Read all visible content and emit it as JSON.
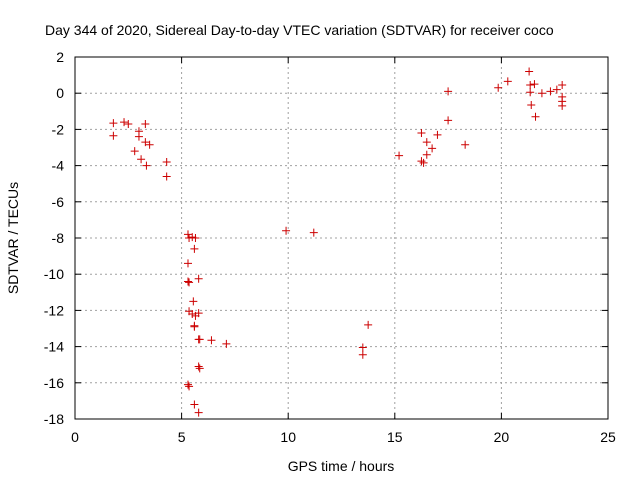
{
  "chart_data": {
    "type": "scatter",
    "title": "Day 344 of 2020, Sidereal Day-to-day VTEC variation (SDTVAR) for receiver coco",
    "xlabel": "GPS time / hours",
    "ylabel": "SDTVAR / TECUs",
    "xlim": [
      0,
      25
    ],
    "ylim": [
      -18,
      2
    ],
    "xticks": [
      0,
      5,
      10,
      15,
      20,
      25
    ],
    "yticks": [
      2,
      0,
      -2,
      -4,
      -6,
      -8,
      -10,
      -12,
      -14,
      -16,
      -18
    ],
    "grid": true,
    "marker": "+",
    "color": "#cc0000",
    "series": [
      {
        "name": "SDTVAR",
        "points": [
          [
            1.8,
            -1.65
          ],
          [
            1.8,
            -2.35
          ],
          [
            2.3,
            -1.6
          ],
          [
            2.5,
            -1.7
          ],
          [
            2.8,
            -3.2
          ],
          [
            3.0,
            -2.1
          ],
          [
            3.0,
            -2.4
          ],
          [
            3.1,
            -3.65
          ],
          [
            3.3,
            -1.7
          ],
          [
            3.3,
            -2.7
          ],
          [
            3.35,
            -4.0
          ],
          [
            3.5,
            -2.85
          ],
          [
            4.3,
            -3.8
          ],
          [
            4.3,
            -4.6
          ],
          [
            5.3,
            -7.8
          ],
          [
            5.35,
            -8.0
          ],
          [
            5.5,
            -7.95
          ],
          [
            5.65,
            -8.0
          ],
          [
            5.6,
            -8.6
          ],
          [
            5.3,
            -9.4
          ],
          [
            5.3,
            -10.4
          ],
          [
            5.35,
            -10.45
          ],
          [
            5.8,
            -10.25
          ],
          [
            5.55,
            -11.5
          ],
          [
            5.35,
            -12.05
          ],
          [
            5.5,
            -12.2
          ],
          [
            5.65,
            -12.3
          ],
          [
            5.8,
            -12.15
          ],
          [
            5.6,
            -12.85
          ],
          [
            5.6,
            -12.9
          ],
          [
            5.8,
            -13.6
          ],
          [
            5.85,
            -13.6
          ],
          [
            6.4,
            -13.65
          ],
          [
            7.1,
            -13.85
          ],
          [
            5.8,
            -15.1
          ],
          [
            5.85,
            -15.2
          ],
          [
            5.3,
            -16.1
          ],
          [
            5.35,
            -16.2
          ],
          [
            5.6,
            -17.2
          ],
          [
            5.8,
            -17.65
          ],
          [
            9.9,
            -7.6
          ],
          [
            11.2,
            -7.7
          ],
          [
            13.5,
            -14.05
          ],
          [
            13.5,
            -14.45
          ],
          [
            13.75,
            -12.8
          ],
          [
            15.2,
            -3.45
          ],
          [
            16.25,
            -2.2
          ],
          [
            16.25,
            -3.75
          ],
          [
            16.35,
            -3.85
          ],
          [
            16.5,
            -3.4
          ],
          [
            16.5,
            -2.7
          ],
          [
            16.75,
            -3.05
          ],
          [
            17.0,
            -2.3
          ],
          [
            17.5,
            -1.5
          ],
          [
            17.5,
            0.1
          ],
          [
            18.3,
            -2.85
          ],
          [
            19.85,
            0.3
          ],
          [
            20.3,
            0.65
          ],
          [
            21.3,
            1.2
          ],
          [
            21.35,
            0.45
          ],
          [
            21.35,
            0.05
          ],
          [
            21.4,
            -0.65
          ],
          [
            21.55,
            0.5
          ],
          [
            21.6,
            -1.3
          ],
          [
            21.9,
            0.0
          ],
          [
            22.3,
            0.1
          ],
          [
            22.6,
            0.2
          ],
          [
            22.85,
            0.45
          ],
          [
            22.85,
            -0.2
          ],
          [
            22.85,
            -0.45
          ],
          [
            22.85,
            -0.7
          ]
        ]
      }
    ]
  }
}
